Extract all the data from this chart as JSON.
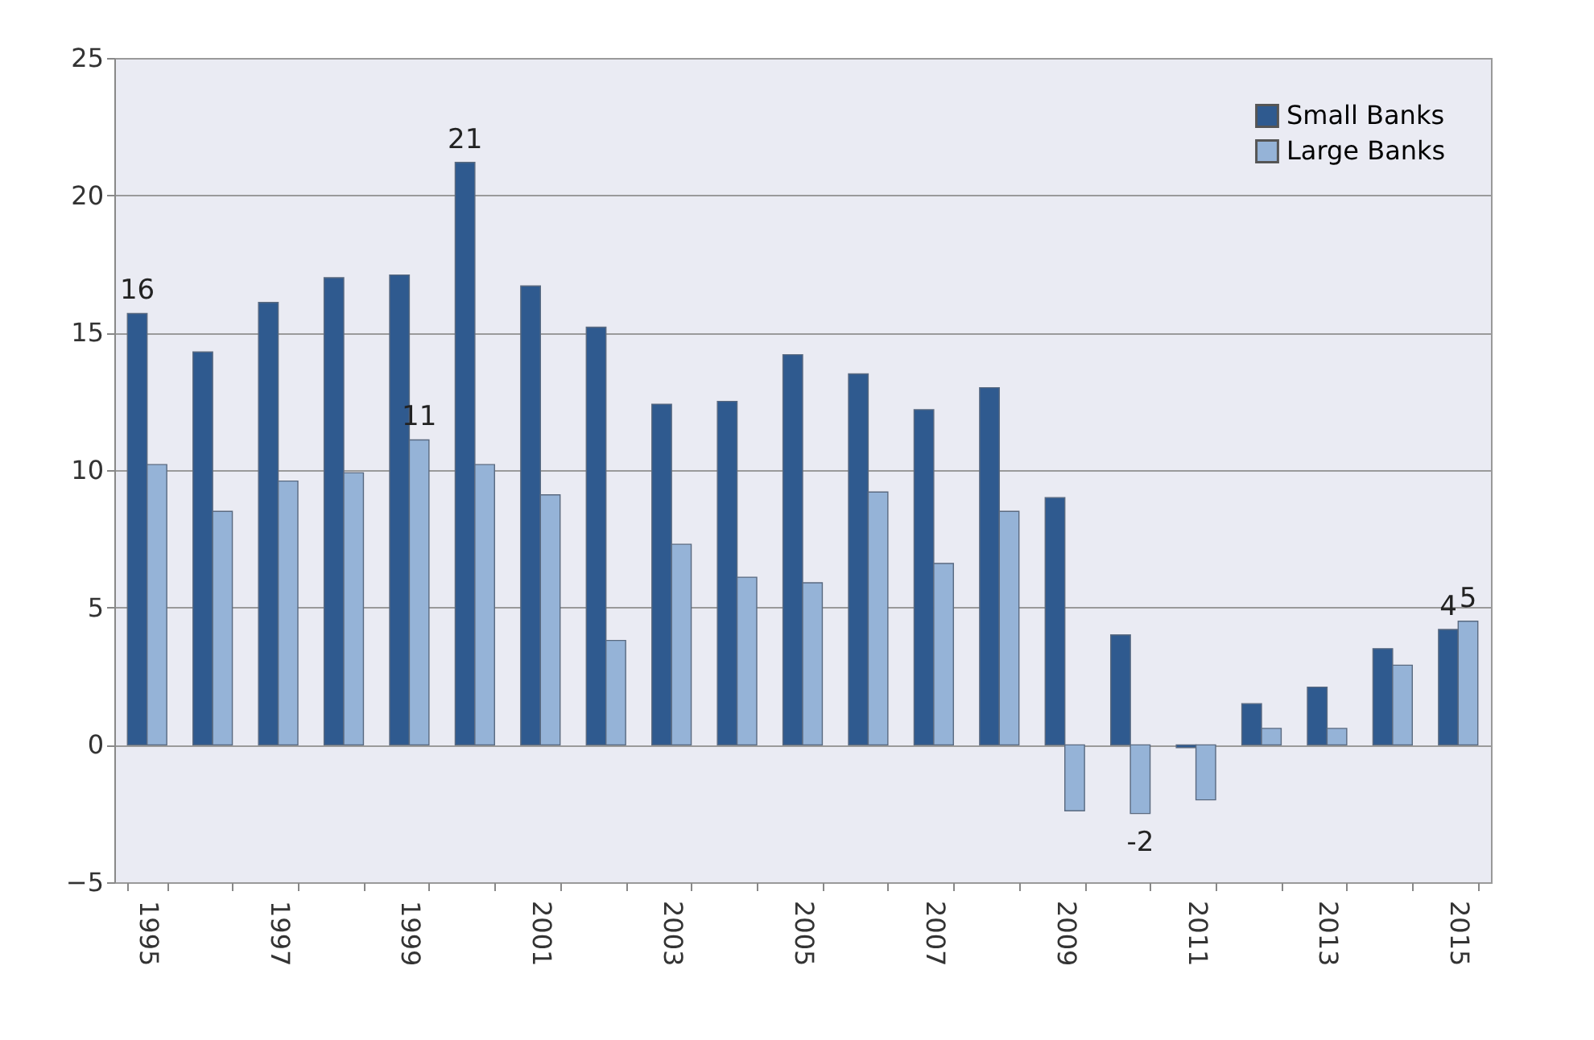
{
  "chart_data": {
    "type": "bar",
    "categories": [
      "1995",
      null,
      "1997",
      null,
      "1999",
      null,
      "2001",
      null,
      "2003",
      null,
      "2005",
      null,
      "2007",
      null,
      "2009",
      null,
      "2011",
      null,
      "2013",
      null,
      "2015"
    ],
    "series": [
      {
        "name": "Small Banks",
        "color": "#2f5a8f",
        "values": [
          15.7,
          14.3,
          16.1,
          17.0,
          17.1,
          21.2,
          16.7,
          15.2,
          12.4,
          12.5,
          14.2,
          13.5,
          12.2,
          13.0,
          9.0,
          4.0,
          -0.1,
          1.5,
          2.1,
          3.5,
          4.2
        ],
        "value_labels": [
          "16",
          null,
          null,
          null,
          null,
          "21",
          null,
          null,
          null,
          null,
          null,
          null,
          null,
          null,
          null,
          null,
          null,
          null,
          null,
          null,
          "4"
        ]
      },
      {
        "name": "Large Banks",
        "color": "#95b3d7",
        "values": [
          10.2,
          8.5,
          9.6,
          9.9,
          11.1,
          10.2,
          9.1,
          3.8,
          7.3,
          6.1,
          5.9,
          9.2,
          6.6,
          8.5,
          -2.4,
          -2.5,
          -2.0,
          0.6,
          0.6,
          2.9,
          4.5
        ],
        "value_labels": [
          null,
          null,
          null,
          null,
          "11",
          null,
          null,
          null,
          null,
          null,
          null,
          null,
          null,
          null,
          null,
          "-2",
          null,
          null,
          null,
          null,
          "5"
        ]
      }
    ],
    "ylim": [
      -5,
      25
    ],
    "yticks": [
      -5,
      0,
      5,
      10,
      15,
      20,
      25
    ],
    "grid": "y",
    "legend": "top right"
  }
}
